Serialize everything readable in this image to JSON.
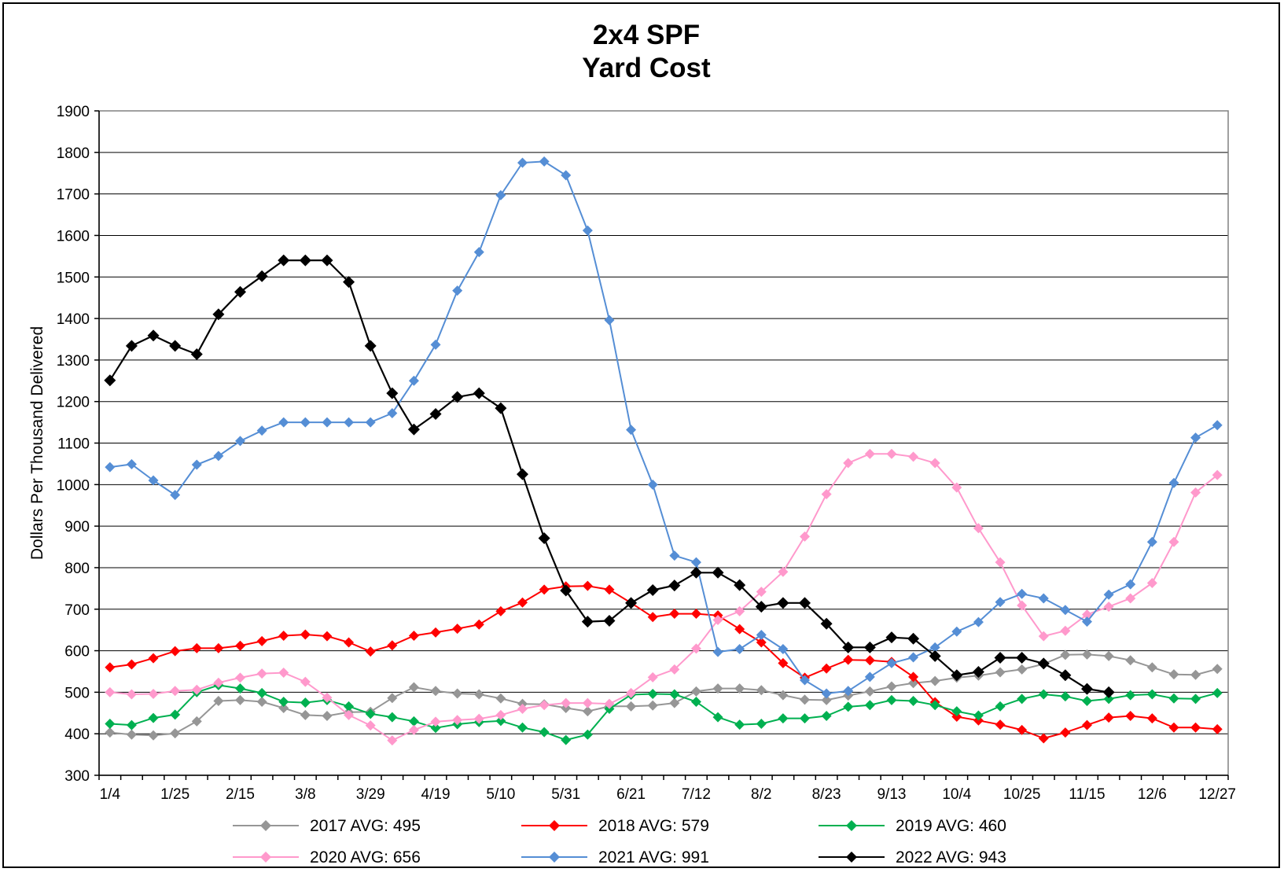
{
  "chart_data": {
    "type": "line",
    "title": "2x4 SPF",
    "subtitle": "Yard Cost",
    "xlabel": "",
    "ylabel": "Dollars Per Thousand Delivered",
    "ylim": [
      300,
      1900
    ],
    "yticks": [
      300,
      400,
      500,
      600,
      700,
      800,
      900,
      1000,
      1100,
      1200,
      1300,
      1400,
      1500,
      1600,
      1700,
      1800,
      1900
    ],
    "x_tick_labels": [
      "1/4",
      "1/25",
      "2/15",
      "3/8",
      "3/29",
      "4/19",
      "5/10",
      "5/31",
      "6/21",
      "7/12",
      "8/2",
      "8/23",
      "9/13",
      "10/4",
      "10/25",
      "11/15",
      "12/6",
      "12/27"
    ],
    "grid": true,
    "legend_position": "bottom",
    "series": [
      {
        "name": "2017 AVG: 495",
        "color": "#969696",
        "values": [
          403,
          398,
          396,
          401,
          430,
          479,
          481,
          477,
          462,
          445,
          443,
          452,
          453,
          486,
          512,
          503,
          497,
          495,
          485,
          472,
          471,
          462,
          454,
          466,
          466,
          468,
          474,
          502,
          509,
          509,
          505,
          493,
          482,
          481,
          492,
          502,
          514,
          522,
          527,
          535,
          540,
          548,
          555,
          568,
          590,
          591,
          587,
          577,
          560,
          543,
          542,
          556
        ]
      },
      {
        "name": "2018 AVG: 579",
        "color": "#ff0000",
        "values": [
          560,
          567,
          582,
          599,
          606,
          606,
          612,
          623,
          636,
          639,
          635,
          620,
          598,
          613,
          636,
          644,
          653,
          663,
          695,
          716,
          747,
          755,
          756,
          747,
          715,
          681,
          689,
          689,
          685,
          652,
          620,
          570,
          535,
          557,
          578,
          577,
          573,
          537,
          476,
          441,
          432,
          422,
          409,
          389,
          403,
          421,
          439,
          443,
          437,
          415,
          415,
          411
        ]
      },
      {
        "name": "2019 AVG: 460",
        "color": "#00b050",
        "values": [
          424,
          421,
          438,
          446,
          500,
          517,
          509,
          498,
          477,
          475,
          481,
          466,
          448,
          440,
          430,
          414,
          423,
          428,
          431,
          415,
          404,
          385,
          398,
          460,
          494,
          496,
          495,
          477,
          440,
          422,
          424,
          437,
          437,
          443,
          465,
          469,
          481,
          479,
          469,
          454,
          444,
          466,
          484,
          495,
          490,
          479,
          484,
          493,
          495,
          485,
          484,
          498
        ]
      },
      {
        "name": "2020 AVG: 656",
        "color": "#ff99cc",
        "values": [
          500,
          495,
          496,
          503,
          506,
          523,
          535,
          545,
          547,
          525,
          487,
          445,
          420,
          384,
          409,
          429,
          433,
          436,
          445,
          460,
          469,
          474,
          474,
          472,
          498,
          536,
          555,
          605,
          674,
          695,
          742,
          790,
          875,
          977,
          1052,
          1074,
          1074,
          1067,
          1052,
          993,
          895,
          813,
          709,
          635,
          648,
          687,
          706,
          726,
          763,
          862,
          981,
          1023
        ]
      },
      {
        "name": "2021 AVG: 991",
        "color": "#558ed5",
        "values": [
          1042,
          1049,
          1010,
          975,
          1048,
          1069,
          1105,
          1130,
          1150,
          1150,
          1150,
          1150,
          1150,
          1172,
          1250,
          1337,
          1467,
          1560,
          1697,
          1775,
          1778,
          1745,
          1612,
          1396,
          1132,
          1000,
          829,
          813,
          597,
          604,
          638,
          604,
          529,
          497,
          503,
          537,
          570,
          584,
          608,
          646,
          669,
          717,
          737,
          726,
          698,
          670,
          735,
          760,
          862,
          1004,
          1113,
          1143
        ]
      },
      {
        "name": "2022 AVG: 943",
        "color": "#000000",
        "values": [
          1251,
          1334,
          1359,
          1334,
          1314,
          1410,
          1464,
          1502,
          1540,
          1540,
          1540,
          1488,
          1334,
          1220,
          1133,
          1170,
          1211,
          1220,
          1184,
          1025,
          871,
          745,
          670,
          672,
          715,
          746,
          757,
          788,
          788,
          758,
          706,
          715,
          715,
          665,
          608,
          608,
          632,
          629,
          587,
          541,
          549,
          583,
          583,
          569,
          541,
          508,
          500
        ]
      }
    ]
  }
}
